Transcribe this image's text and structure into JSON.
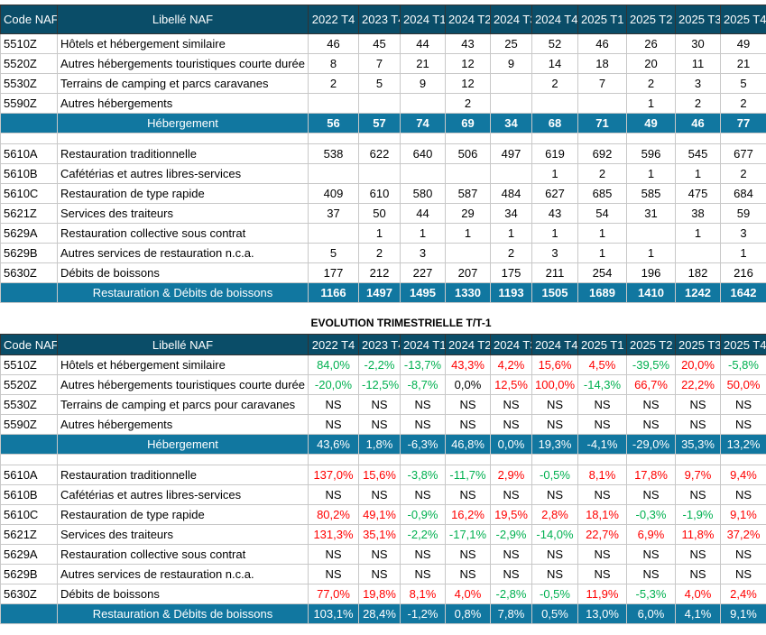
{
  "headers": {
    "code": "Code NAF",
    "label": "Libellé NAF",
    "periods": [
      "2022 T4",
      "2023 T4",
      "2024 T1",
      "2024 T2",
      "2024 T3",
      "2024 T4",
      "2025 T1",
      "2025 T2",
      "2025 T3",
      "2025 T4"
    ]
  },
  "colors": {
    "header": "#0a4d68",
    "subtotal": "#1177a0",
    "increase": "#ff0000",
    "decrease": "#00b050"
  },
  "counts": {
    "groups": [
      {
        "rows": [
          {
            "code": "5510Z",
            "label": "Hôtels et hébergement similaire",
            "values": [
              "46",
              "45",
              "44",
              "43",
              "25",
              "52",
              "46",
              "26",
              "30",
              "49"
            ]
          },
          {
            "code": "5520Z",
            "label": "Autres hébergements touristiques courte durée",
            "values": [
              "8",
              "7",
              "21",
              "12",
              "9",
              "14",
              "18",
              "20",
              "11",
              "21"
            ]
          },
          {
            "code": "5530Z",
            "label": "Terrains de camping et parcs caravanes",
            "values": [
              "2",
              "5",
              "9",
              "12",
              "",
              "2",
              "7",
              "2",
              "3",
              "5"
            ]
          },
          {
            "code": "5590Z",
            "label": "Autres hébergements",
            "values": [
              "",
              "",
              "",
              "2",
              "",
              "",
              "",
              "1",
              "2",
              "2"
            ]
          }
        ],
        "total": {
          "label": "Hébergement",
          "values": [
            "56",
            "57",
            "74",
            "69",
            "34",
            "68",
            "71",
            "49",
            "46",
            "77"
          ]
        }
      },
      {
        "rows": [
          {
            "code": "5610A",
            "label": "Restauration traditionnelle",
            "values": [
              "538",
              "622",
              "640",
              "506",
              "497",
              "619",
              "692",
              "596",
              "545",
              "677"
            ]
          },
          {
            "code": "5610B",
            "label": "Cafétérias et autres libres-services",
            "values": [
              "",
              "",
              "",
              "",
              "",
              "1",
              "2",
              "1",
              "1",
              "2"
            ]
          },
          {
            "code": "5610C",
            "label": "Restauration de type rapide",
            "values": [
              "409",
              "610",
              "580",
              "587",
              "484",
              "627",
              "685",
              "585",
              "475",
              "684"
            ]
          },
          {
            "code": "5621Z",
            "label": "Services des traiteurs",
            "values": [
              "37",
              "50",
              "44",
              "29",
              "34",
              "43",
              "54",
              "31",
              "38",
              "59"
            ]
          },
          {
            "code": "5629A",
            "label": "Restauration collective sous contrat",
            "values": [
              "",
              "1",
              "1",
              "1",
              "1",
              "1",
              "1",
              "",
              "1",
              "3"
            ]
          },
          {
            "code": "5629B",
            "label": "Autres services de restauration n.c.a.",
            "values": [
              "5",
              "2",
              "3",
              "",
              "2",
              "3",
              "1",
              "1",
              "",
              "1"
            ]
          },
          {
            "code": "5630Z",
            "label": "Débits de boissons",
            "values": [
              "177",
              "212",
              "227",
              "207",
              "175",
              "211",
              "254",
              "196",
              "182",
              "216"
            ]
          }
        ],
        "total": {
          "label": "Restauration & Débits de boissons",
          "values": [
            "1166",
            "1497",
            "1495",
            "1330",
            "1193",
            "1505",
            "1689",
            "1410",
            "1242",
            "1642"
          ]
        }
      }
    ]
  },
  "evolution_title": "EVOLUTION TRIMESTRIELLE   T/T-1",
  "evolution": {
    "groups": [
      {
        "rows": [
          {
            "code": "5510Z",
            "label": "Hôtels et hébergement similaire",
            "values": [
              "84,0%",
              "-2,2%",
              "-13,7%",
              "43,3%",
              "4,2%",
              "15,6%",
              "4,5%",
              "-39,5%",
              "20,0%",
              "-5,8%"
            ],
            "tones": [
              "g",
              "g",
              "g",
              "r",
              "r",
              "r",
              "r",
              "g",
              "r",
              "g"
            ]
          },
          {
            "code": "5520Z",
            "label": "Autres hébergements touristiques courte durée",
            "values": [
              "-20,0%",
              "-12,5%",
              "-8,7%",
              "0,0%",
              "12,5%",
              "100,0%",
              "-14,3%",
              "66,7%",
              "22,2%",
              "50,0%"
            ],
            "tones": [
              "g",
              "g",
              "g",
              "k",
              "r",
              "r",
              "g",
              "r",
              "r",
              "r"
            ]
          },
          {
            "code": "5530Z",
            "label": "Terrains de camping et parcs pour caravanes",
            "values": [
              "NS",
              "NS",
              "NS",
              "NS",
              "NS",
              "NS",
              "NS",
              "NS",
              "NS",
              "NS"
            ],
            "tones": [
              "k",
              "k",
              "k",
              "k",
              "k",
              "k",
              "k",
              "k",
              "k",
              "k"
            ]
          },
          {
            "code": "5590Z",
            "label": "Autres hébergements",
            "values": [
              "NS",
              "NS",
              "NS",
              "NS",
              "NS",
              "NS",
              "NS",
              "NS",
              "NS",
              "NS"
            ],
            "tones": [
              "k",
              "k",
              "k",
              "k",
              "k",
              "k",
              "k",
              "k",
              "k",
              "k"
            ]
          }
        ],
        "total": {
          "label": "Hébergement",
          "values": [
            "43,6%",
            "1,8%",
            "-6,3%",
            "46,8%",
            "0,0%",
            "19,3%",
            "-4,1%",
            "-29,0%",
            "35,3%",
            "13,2%"
          ]
        }
      },
      {
        "rows": [
          {
            "code": "5610A",
            "label": "Restauration traditionnelle",
            "values": [
              "137,0%",
              "15,6%",
              "-3,8%",
              "-11,7%",
              "2,9%",
              "-0,5%",
              "8,1%",
              "17,8%",
              "9,7%",
              "9,4%"
            ],
            "tones": [
              "r",
              "r",
              "g",
              "g",
              "r",
              "g",
              "r",
              "r",
              "r",
              "r"
            ]
          },
          {
            "code": "5610B",
            "label": "Cafétérias et autres libres-services",
            "values": [
              "NS",
              "NS",
              "NS",
              "NS",
              "NS",
              "NS",
              "NS",
              "NS",
              "NS",
              "NS"
            ],
            "tones": [
              "k",
              "k",
              "k",
              "k",
              "k",
              "k",
              "k",
              "k",
              "k",
              "k"
            ]
          },
          {
            "code": "5610C",
            "label": "Restauration de type rapide",
            "values": [
              "80,2%",
              "49,1%",
              "-0,9%",
              "16,2%",
              "19,5%",
              "2,8%",
              "18,1%",
              "-0,3%",
              "-1,9%",
              "9,1%"
            ],
            "tones": [
              "r",
              "r",
              "g",
              "r",
              "r",
              "r",
              "r",
              "g",
              "g",
              "r"
            ]
          },
          {
            "code": "5621Z",
            "label": "Services des traiteurs",
            "values": [
              "131,3%",
              "35,1%",
              "-2,2%",
              "-17,1%",
              "-2,9%",
              "-14,0%",
              "22,7%",
              "6,9%",
              "11,8%",
              "37,2%"
            ],
            "tones": [
              "r",
              "r",
              "g",
              "g",
              "g",
              "g",
              "r",
              "r",
              "r",
              "r"
            ]
          },
          {
            "code": "5629A",
            "label": "Restauration collective sous contrat",
            "values": [
              "NS",
              "NS",
              "NS",
              "NS",
              "NS",
              "NS",
              "NS",
              "NS",
              "NS",
              "NS"
            ],
            "tones": [
              "k",
              "k",
              "k",
              "k",
              "k",
              "k",
              "k",
              "k",
              "k",
              "k"
            ]
          },
          {
            "code": "5629B",
            "label": "Autres services de restauration n.c.a.",
            "values": [
              "NS",
              "NS",
              "NS",
              "NS",
              "NS",
              "NS",
              "NS",
              "NS",
              "NS",
              "NS"
            ],
            "tones": [
              "k",
              "k",
              "k",
              "k",
              "k",
              "k",
              "k",
              "k",
              "k",
              "k"
            ]
          },
          {
            "code": "5630Z",
            "label": "Débits de boissons",
            "values": [
              "77,0%",
              "19,8%",
              "8,1%",
              "4,0%",
              "-2,8%",
              "-0,5%",
              "11,9%",
              "-5,3%",
              "4,0%",
              "2,4%"
            ],
            "tones": [
              "r",
              "r",
              "r",
              "r",
              "g",
              "g",
              "r",
              "g",
              "r",
              "r"
            ]
          }
        ],
        "total": {
          "label": "Restauration & Débits de boissons",
          "values": [
            "103,1%",
            "28,4%",
            "-1,2%",
            "0,8%",
            "7,8%",
            "0,5%",
            "13,0%",
            "6,0%",
            "4,1%",
            "9,1%"
          ]
        }
      }
    ]
  }
}
